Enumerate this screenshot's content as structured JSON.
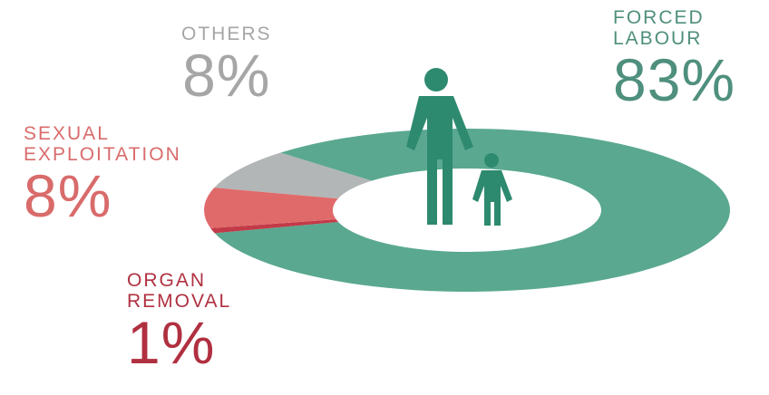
{
  "chart_data": {
    "type": "pie",
    "title": "",
    "categories": [
      "Forced Labour",
      "Others",
      "Sexual Exploitation",
      "Organ Removal"
    ],
    "series": [
      {
        "values": [
          83,
          8,
          8,
          1
        ],
        "colors": [
          "#5aa890",
          "#b3b6b6",
          "#e06a6a",
          "#c23a48"
        ]
      }
    ],
    "legend": "none",
    "labels": [
      {
        "name_lines": [
          "FORCED",
          "LABOUR"
        ],
        "value": "83%",
        "color": "#4f8f7d"
      },
      {
        "name_lines": [
          "OTHERS"
        ],
        "value": "8%",
        "color": "#a6a6a6"
      },
      {
        "name_lines": [
          "SEXUAL",
          "EXPLOITATION"
        ],
        "value": "8%",
        "color": "#d96b6b"
      },
      {
        "name_lines": [
          "ORGAN",
          "REMOVAL"
        ],
        "value": "1%",
        "color": "#b03040"
      }
    ]
  },
  "icons": {
    "adult": "adult-person-icon",
    "child": "child-person-icon",
    "fill": "#2e8a6f"
  }
}
